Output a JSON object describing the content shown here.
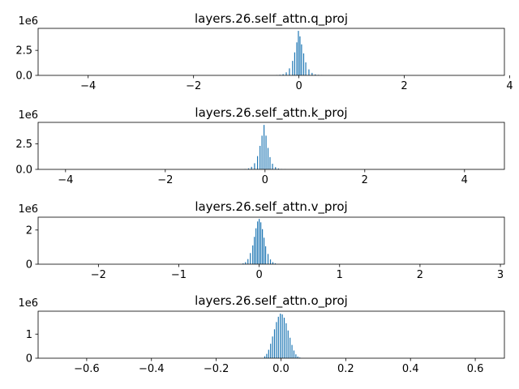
{
  "colors": {
    "bar": "#1f77b4",
    "axis": "#000000",
    "background": "#ffffff"
  },
  "chart_data": [
    {
      "type": "bar",
      "title": "layers.26.self_attn.q_proj",
      "xlabel": "",
      "ylabel": "",
      "y_offset_label": "1e6",
      "xlim": [
        -4.95,
        3.9
      ],
      "ylim": [
        0,
        4.7
      ],
      "xticks": [
        -4,
        -2,
        0,
        2,
        4
      ],
      "xtick_labels": [
        "−4",
        "−2",
        "0",
        "2",
        "4"
      ],
      "yticks": [
        0,
        2.5
      ],
      "ytick_labels": [
        "0.0",
        "2.5"
      ],
      "grid": false,
      "x": [
        -0.42,
        -0.36,
        -0.3,
        -0.24,
        -0.18,
        -0.12,
        -0.08,
        -0.04,
        -0.01,
        0.02,
        0.05,
        0.09,
        0.13,
        0.19,
        0.25,
        0.31,
        0.37,
        0.43
      ],
      "values": [
        0.03,
        0.06,
        0.12,
        0.3,
        0.7,
        1.45,
        2.3,
        3.3,
        4.45,
        3.9,
        3.1,
        2.2,
        1.3,
        0.6,
        0.25,
        0.1,
        0.05,
        0.02
      ]
    },
    {
      "type": "bar",
      "title": "layers.26.self_attn.k_proj",
      "xlabel": "",
      "ylabel": "",
      "y_offset_label": "1e6",
      "xlim": [
        -4.55,
        4.8
      ],
      "ylim": [
        0,
        4.6
      ],
      "xticks": [
        -4,
        -2,
        0,
        2,
        4
      ],
      "xtick_labels": [
        "−4",
        "−2",
        "0",
        "2",
        "4"
      ],
      "yticks": [
        0,
        2.5
      ],
      "ytick_labels": [
        "0.0",
        "2.5"
      ],
      "grid": false,
      "x": [
        -0.4,
        -0.33,
        -0.27,
        -0.21,
        -0.15,
        -0.1,
        -0.06,
        -0.02,
        0.02,
        0.06,
        0.1,
        0.15,
        0.21,
        0.27,
        0.33,
        0.4
      ],
      "values": [
        0.04,
        0.1,
        0.25,
        0.6,
        1.3,
        2.3,
        3.3,
        4.35,
        3.3,
        2.1,
        1.2,
        0.55,
        0.22,
        0.09,
        0.04,
        0.02
      ]
    },
    {
      "type": "bar",
      "title": "layers.26.self_attn.v_proj",
      "xlabel": "",
      "ylabel": "",
      "y_offset_label": "1e6",
      "xlim": [
        -2.75,
        3.05
      ],
      "ylim": [
        0,
        2.75
      ],
      "xticks": [
        -2,
        -1,
        0,
        1,
        2,
        3
      ],
      "xtick_labels": [
        "−2",
        "−1",
        "0",
        "1",
        "2",
        "3"
      ],
      "yticks": [
        0,
        2
      ],
      "ytick_labels": [
        "0",
        "2"
      ],
      "grid": false,
      "x": [
        -0.2,
        -0.17,
        -0.14,
        -0.11,
        -0.08,
        -0.06,
        -0.04,
        -0.02,
        0.0,
        0.02,
        0.04,
        0.06,
        0.08,
        0.11,
        0.14,
        0.17,
        0.2
      ],
      "values": [
        0.05,
        0.12,
        0.3,
        0.65,
        1.1,
        1.6,
        2.1,
        2.5,
        2.65,
        2.45,
        2.05,
        1.55,
        1.05,
        0.6,
        0.28,
        0.12,
        0.05
      ]
    },
    {
      "type": "bar",
      "title": "layers.26.self_attn.o_proj",
      "xlabel": "",
      "ylabel": "",
      "y_offset_label": "1e6",
      "xlim": [
        -0.75,
        0.69
      ],
      "ylim": [
        0,
        1.95
      ],
      "xticks": [
        -0.6,
        -0.4,
        -0.2,
        0.0,
        0.2,
        0.4,
        0.6
      ],
      "xtick_labels": [
        "−0.6",
        "−0.4",
        "−0.2",
        "0.0",
        "0.2",
        "0.4",
        "0.6"
      ],
      "yticks": [
        0,
        1
      ],
      "ytick_labels": [
        "0",
        "1"
      ],
      "grid": false,
      "x": [
        -0.05,
        -0.044,
        -0.038,
        -0.032,
        -0.026,
        -0.02,
        -0.014,
        -0.008,
        -0.002,
        0.004,
        0.01,
        0.016,
        0.022,
        0.028,
        0.034,
        0.04,
        0.046,
        0.052,
        0.058
      ],
      "values": [
        0.08,
        0.18,
        0.35,
        0.6,
        0.9,
        1.2,
        1.5,
        1.72,
        1.85,
        1.82,
        1.68,
        1.45,
        1.15,
        0.85,
        0.55,
        0.32,
        0.16,
        0.07,
        0.03
      ]
    }
  ]
}
